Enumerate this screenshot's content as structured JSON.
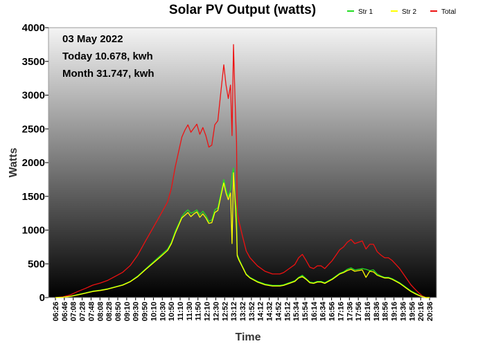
{
  "chart_data": {
    "type": "line",
    "title": "Solar PV Output (watts)",
    "xlabel": "Time",
    "ylabel": "Watts",
    "ylim": [
      0,
      4000
    ],
    "yticks": [
      "0",
      "500",
      "1000",
      "1500",
      "2000",
      "2500",
      "3000",
      "3500",
      "4000"
    ],
    "xlim": [
      "06:26",
      "20:46"
    ],
    "xticks": [
      "06:26",
      "06:46",
      "07:08",
      "07:28",
      "07:48",
      "08:08",
      "08:28",
      "08:50",
      "09:10",
      "09:30",
      "09:50",
      "10:10",
      "10:30",
      "10:50",
      "11:10",
      "11:30",
      "11:50",
      "12:10",
      "12:30",
      "12:52",
      "13:12",
      "13:32",
      "13:52",
      "14:12",
      "14:32",
      "14:52",
      "15:12",
      "15:34",
      "15:54",
      "16:14",
      "16:34",
      "16:56",
      "17:16",
      "17:36",
      "17:56",
      "18:16",
      "18:36",
      "18:56",
      "19:16",
      "19:36",
      "19:56",
      "20:16",
      "20:36"
    ],
    "legend_position": "top-right",
    "annotations": [
      "03 May 2022",
      "Today 10.678, kwh",
      "Month 31.747, kwh"
    ],
    "series": [
      {
        "name": "Str 1",
        "color": "#22dd22",
        "values": [
          [
            0,
            0
          ],
          [
            20,
            5
          ],
          [
            40,
            20
          ],
          [
            60,
            45
          ],
          [
            80,
            70
          ],
          [
            100,
            95
          ],
          [
            120,
            110
          ],
          [
            140,
            130
          ],
          [
            160,
            160
          ],
          [
            180,
            190
          ],
          [
            200,
            240
          ],
          [
            220,
            320
          ],
          [
            240,
            420
          ],
          [
            260,
            520
          ],
          [
            280,
            620
          ],
          [
            300,
            720
          ],
          [
            310,
            820
          ],
          [
            320,
            980
          ],
          [
            330,
            1100
          ],
          [
            338,
            1200
          ],
          [
            346,
            1260
          ],
          [
            354,
            1300
          ],
          [
            362,
            1250
          ],
          [
            370,
            1270
          ],
          [
            378,
            1300
          ],
          [
            386,
            1230
          ],
          [
            394,
            1280
          ],
          [
            402,
            1220
          ],
          [
            410,
            1130
          ],
          [
            418,
            1150
          ],
          [
            426,
            1300
          ],
          [
            434,
            1330
          ],
          [
            442,
            1540
          ],
          [
            450,
            1750
          ],
          [
            456,
            1600
          ],
          [
            462,
            1500
          ],
          [
            468,
            1600
          ],
          [
            472,
            1820
          ],
          [
            476,
            1920
          ],
          [
            480,
            1500
          ],
          [
            484,
            1300
          ],
          [
            486,
            640
          ],
          [
            490,
            580
          ],
          [
            500,
            460
          ],
          [
            510,
            350
          ],
          [
            520,
            300
          ],
          [
            540,
            240
          ],
          [
            560,
            200
          ],
          [
            580,
            180
          ],
          [
            600,
            180
          ],
          [
            610,
            190
          ],
          [
            620,
            210
          ],
          [
            630,
            230
          ],
          [
            640,
            250
          ],
          [
            650,
            300
          ],
          [
            660,
            330
          ],
          [
            670,
            280
          ],
          [
            680,
            230
          ],
          [
            690,
            220
          ],
          [
            700,
            240
          ],
          [
            710,
            240
          ],
          [
            720,
            220
          ],
          [
            730,
            250
          ],
          [
            740,
            280
          ],
          [
            750,
            320
          ],
          [
            760,
            360
          ],
          [
            770,
            380
          ],
          [
            780,
            420
          ],
          [
            790,
            440
          ],
          [
            800,
            410
          ],
          [
            810,
            420
          ],
          [
            820,
            430
          ],
          [
            830,
            420
          ],
          [
            840,
            400
          ],
          [
            850,
            410
          ],
          [
            860,
            350
          ],
          [
            870,
            320
          ],
          [
            880,
            300
          ],
          [
            890,
            300
          ],
          [
            900,
            280
          ],
          [
            910,
            250
          ],
          [
            920,
            220
          ],
          [
            930,
            180
          ],
          [
            940,
            140
          ],
          [
            950,
            100
          ],
          [
            960,
            70
          ],
          [
            970,
            40
          ],
          [
            980,
            15
          ],
          [
            990,
            0
          ],
          [
            1000,
            0
          ]
        ]
      },
      {
        "name": "Str 2",
        "color": "#ffff00",
        "values": [
          [
            0,
            0
          ],
          [
            20,
            5
          ],
          [
            40,
            18
          ],
          [
            60,
            40
          ],
          [
            80,
            65
          ],
          [
            100,
            90
          ],
          [
            120,
            105
          ],
          [
            140,
            125
          ],
          [
            160,
            155
          ],
          [
            180,
            185
          ],
          [
            200,
            235
          ],
          [
            220,
            310
          ],
          [
            240,
            410
          ],
          [
            260,
            505
          ],
          [
            280,
            600
          ],
          [
            300,
            700
          ],
          [
            310,
            800
          ],
          [
            320,
            950
          ],
          [
            330,
            1080
          ],
          [
            338,
            1180
          ],
          [
            346,
            1220
          ],
          [
            354,
            1260
          ],
          [
            362,
            1200
          ],
          [
            370,
            1240
          ],
          [
            378,
            1270
          ],
          [
            386,
            1190
          ],
          [
            394,
            1240
          ],
          [
            402,
            1180
          ],
          [
            410,
            1100
          ],
          [
            418,
            1110
          ],
          [
            426,
            1260
          ],
          [
            434,
            1290
          ],
          [
            442,
            1500
          ],
          [
            450,
            1700
          ],
          [
            456,
            1550
          ],
          [
            462,
            1450
          ],
          [
            468,
            1550
          ],
          [
            472,
            800
          ],
          [
            476,
            1850
          ],
          [
            480,
            1450
          ],
          [
            484,
            1000
          ],
          [
            486,
            620
          ],
          [
            490,
            560
          ],
          [
            500,
            450
          ],
          [
            510,
            340
          ],
          [
            520,
            290
          ],
          [
            540,
            230
          ],
          [
            560,
            190
          ],
          [
            580,
            170
          ],
          [
            600,
            170
          ],
          [
            610,
            180
          ],
          [
            620,
            200
          ],
          [
            630,
            220
          ],
          [
            640,
            240
          ],
          [
            650,
            290
          ],
          [
            660,
            310
          ],
          [
            670,
            270
          ],
          [
            680,
            220
          ],
          [
            690,
            210
          ],
          [
            700,
            230
          ],
          [
            710,
            230
          ],
          [
            720,
            210
          ],
          [
            730,
            240
          ],
          [
            740,
            270
          ],
          [
            750,
            310
          ],
          [
            760,
            350
          ],
          [
            770,
            370
          ],
          [
            780,
            400
          ],
          [
            790,
            420
          ],
          [
            800,
            390
          ],
          [
            810,
            400
          ],
          [
            820,
            410
          ],
          [
            830,
            300
          ],
          [
            840,
            390
          ],
          [
            850,
            380
          ],
          [
            860,
            330
          ],
          [
            870,
            310
          ],
          [
            880,
            290
          ],
          [
            890,
            290
          ],
          [
            900,
            270
          ],
          [
            910,
            240
          ],
          [
            920,
            210
          ],
          [
            930,
            170
          ],
          [
            940,
            130
          ],
          [
            950,
            90
          ],
          [
            960,
            60
          ],
          [
            970,
            35
          ],
          [
            980,
            12
          ],
          [
            990,
            0
          ],
          [
            1000,
            0
          ]
        ]
      },
      {
        "name": "Total",
        "color": "#ee1111",
        "values": [
          [
            0,
            0
          ],
          [
            20,
            10
          ],
          [
            40,
            40
          ],
          [
            60,
            90
          ],
          [
            80,
            135
          ],
          [
            100,
            185
          ],
          [
            120,
            215
          ],
          [
            140,
            255
          ],
          [
            160,
            315
          ],
          [
            180,
            375
          ],
          [
            200,
            475
          ],
          [
            220,
            630
          ],
          [
            240,
            830
          ],
          [
            260,
            1025
          ],
          [
            280,
            1220
          ],
          [
            300,
            1420
          ],
          [
            310,
            1620
          ],
          [
            320,
            1930
          ],
          [
            330,
            2180
          ],
          [
            338,
            2380
          ],
          [
            346,
            2480
          ],
          [
            354,
            2560
          ],
          [
            362,
            2450
          ],
          [
            370,
            2510
          ],
          [
            378,
            2570
          ],
          [
            386,
            2420
          ],
          [
            394,
            2520
          ],
          [
            402,
            2400
          ],
          [
            410,
            2230
          ],
          [
            418,
            2260
          ],
          [
            426,
            2560
          ],
          [
            434,
            2620
          ],
          [
            442,
            3040
          ],
          [
            450,
            3450
          ],
          [
            456,
            3150
          ],
          [
            462,
            2950
          ],
          [
            468,
            3150
          ],
          [
            472,
            2400
          ],
          [
            476,
            3750
          ],
          [
            480,
            2950
          ],
          [
            484,
            2300
          ],
          [
            486,
            1260
          ],
          [
            490,
            1140
          ],
          [
            500,
            910
          ],
          [
            510,
            690
          ],
          [
            520,
            590
          ],
          [
            540,
            470
          ],
          [
            560,
            390
          ],
          [
            580,
            350
          ],
          [
            600,
            350
          ],
          [
            610,
            370
          ],
          [
            620,
            410
          ],
          [
            630,
            450
          ],
          [
            640,
            490
          ],
          [
            650,
            590
          ],
          [
            660,
            640
          ],
          [
            670,
            550
          ],
          [
            680,
            450
          ],
          [
            690,
            430
          ],
          [
            700,
            470
          ],
          [
            710,
            470
          ],
          [
            720,
            430
          ],
          [
            730,
            490
          ],
          [
            740,
            550
          ],
          [
            750,
            630
          ],
          [
            760,
            710
          ],
          [
            770,
            750
          ],
          [
            780,
            820
          ],
          [
            790,
            860
          ],
          [
            800,
            800
          ],
          [
            810,
            820
          ],
          [
            820,
            840
          ],
          [
            830,
            720
          ],
          [
            840,
            790
          ],
          [
            850,
            790
          ],
          [
            860,
            680
          ],
          [
            870,
            630
          ],
          [
            880,
            590
          ],
          [
            890,
            590
          ],
          [
            900,
            550
          ],
          [
            910,
            490
          ],
          [
            920,
            430
          ],
          [
            930,
            350
          ],
          [
            940,
            270
          ],
          [
            950,
            190
          ],
          [
            960,
            130
          ],
          [
            970,
            75
          ],
          [
            980,
            27
          ],
          [
            990,
            0
          ],
          [
            1000,
            0
          ]
        ]
      }
    ]
  }
}
